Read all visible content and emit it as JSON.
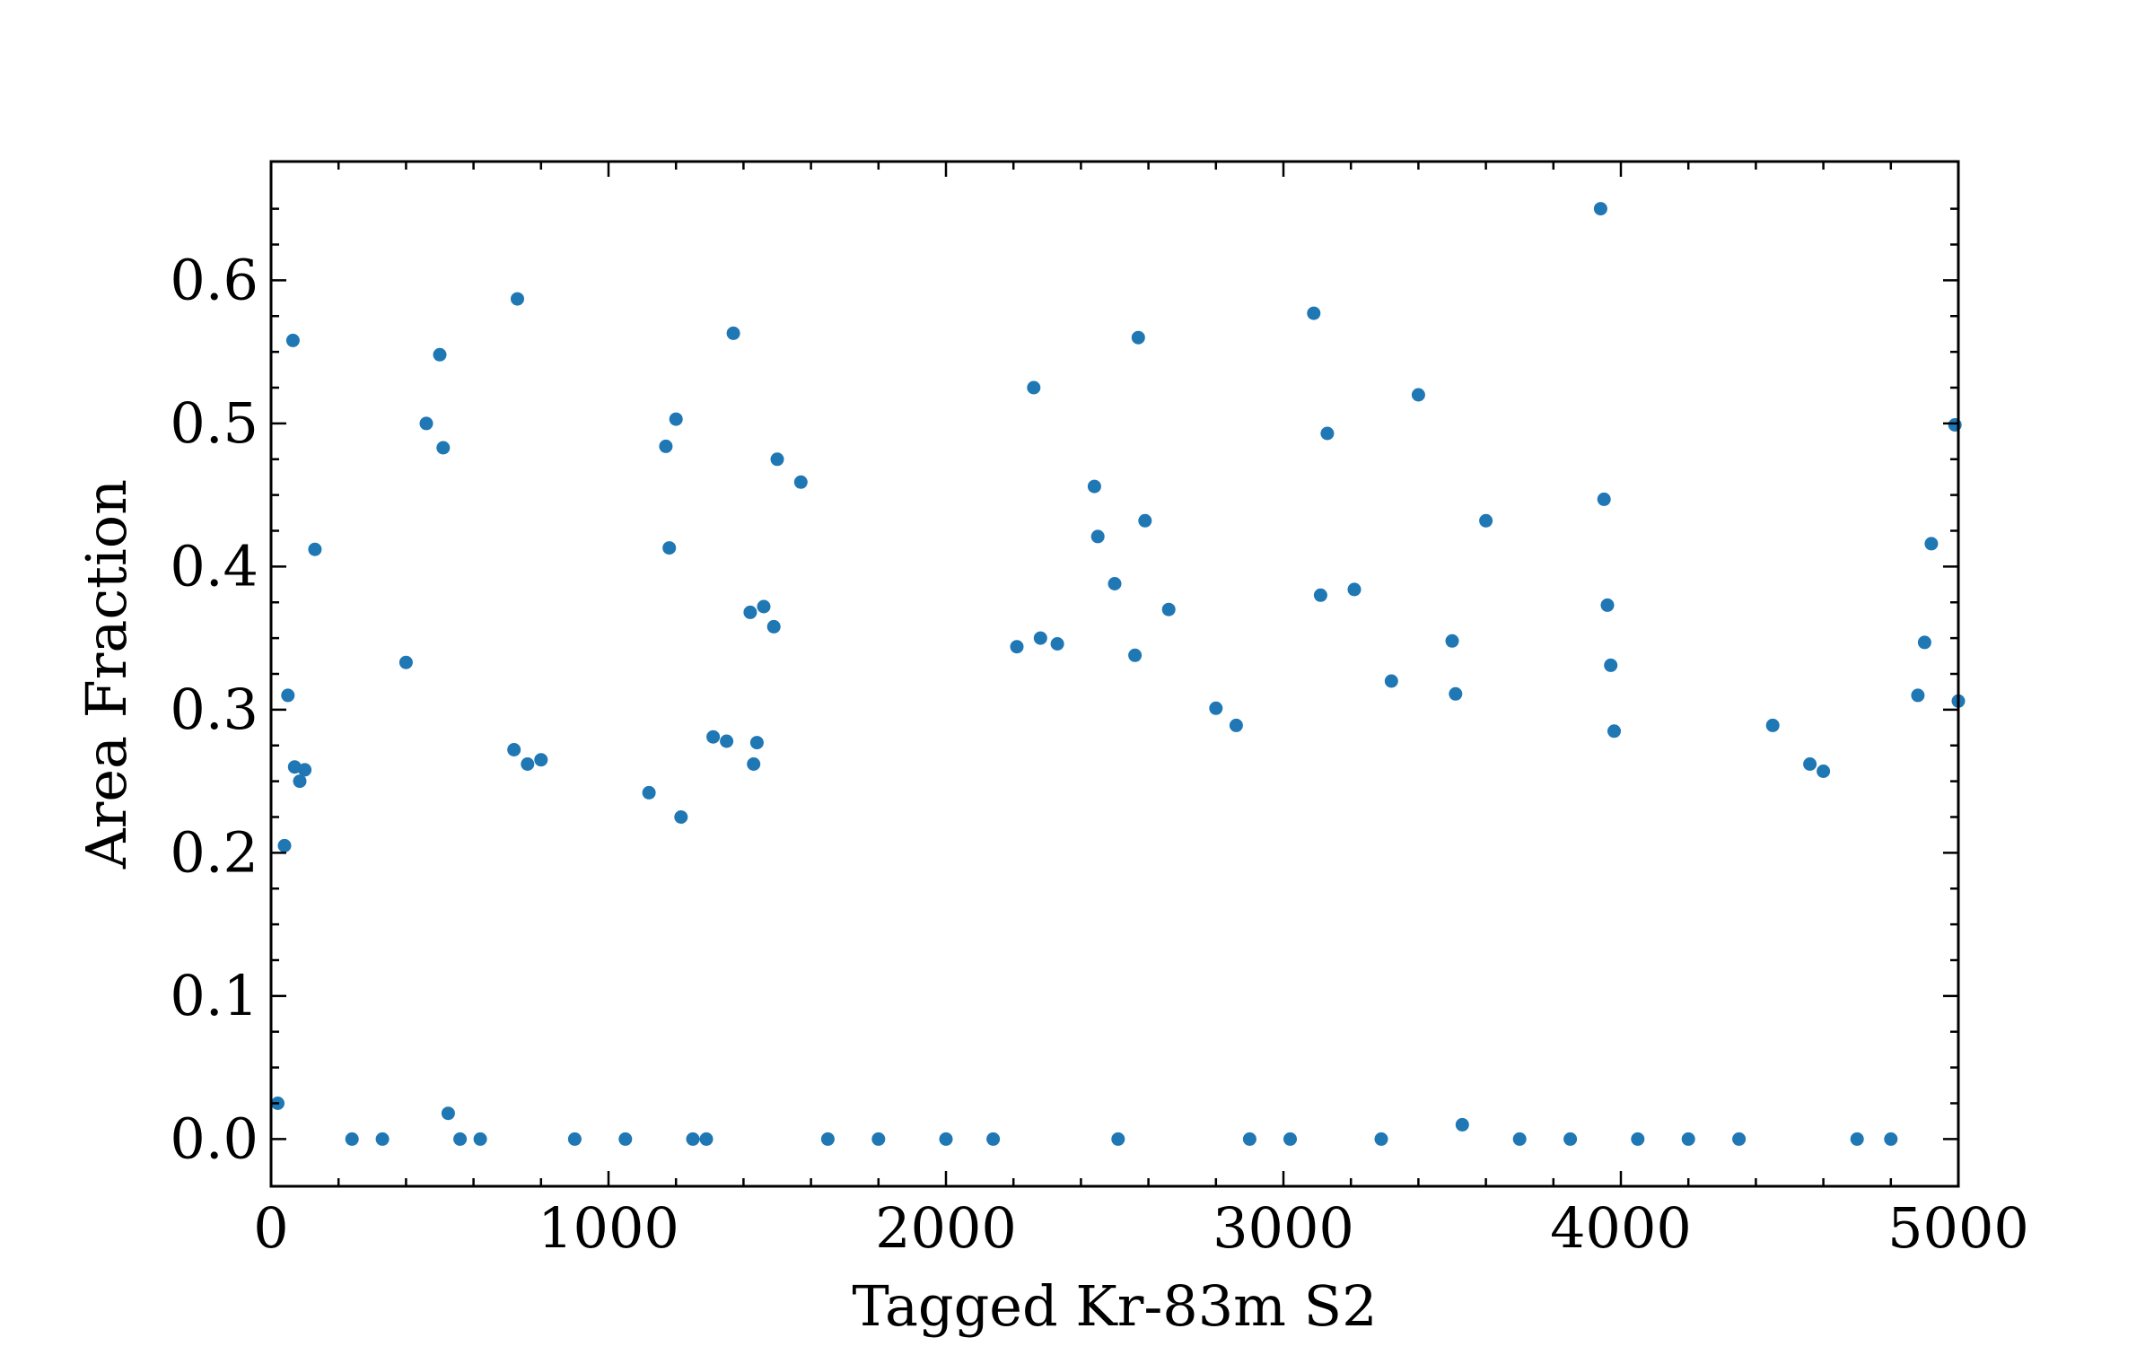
{
  "chart_data": {
    "type": "scatter",
    "title": "",
    "xlabel": "Tagged Kr-83m S2",
    "ylabel": "Area Fraction",
    "xlim": [
      0,
      5000
    ],
    "ylim": [
      -0.033,
      0.683
    ],
    "xticks": [
      0,
      1000,
      2000,
      3000,
      4000,
      5000
    ],
    "yticks": [
      0.0,
      0.1,
      0.2,
      0.3,
      0.4,
      0.5,
      0.6
    ],
    "xtick_labels": [
      "0",
      "1000",
      "2000",
      "3000",
      "4000",
      "5000"
    ],
    "ytick_labels": [
      "0.0",
      "0.1",
      "0.2",
      "0.3",
      "0.4",
      "0.5",
      "0.6"
    ],
    "grid": false,
    "legend": "none",
    "color": "#1f77b4",
    "series": [
      {
        "points": [
          [
            20,
            0.025
          ],
          [
            40,
            0.205
          ],
          [
            50,
            0.31
          ],
          [
            65,
            0.558
          ],
          [
            70,
            0.26
          ],
          [
            85,
            0.25
          ],
          [
            100,
            0.258
          ],
          [
            130,
            0.412
          ],
          [
            240,
            0.0
          ],
          [
            330,
            0.0
          ],
          [
            400,
            0.333
          ],
          [
            460,
            0.5
          ],
          [
            500,
            0.548
          ],
          [
            510,
            0.483
          ],
          [
            525,
            0.018
          ],
          [
            560,
            0.0
          ],
          [
            620,
            0.0
          ],
          [
            720,
            0.272
          ],
          [
            730,
            0.587
          ],
          [
            760,
            0.262
          ],
          [
            800,
            0.265
          ],
          [
            900,
            0.0
          ],
          [
            1050,
            0.0
          ],
          [
            1120,
            0.242
          ],
          [
            1170,
            0.484
          ],
          [
            1180,
            0.413
          ],
          [
            1200,
            0.503
          ],
          [
            1215,
            0.225
          ],
          [
            1250,
            0.0
          ],
          [
            1290,
            0.0
          ],
          [
            1310,
            0.281
          ],
          [
            1350,
            0.278
          ],
          [
            1370,
            0.563
          ],
          [
            1420,
            0.368
          ],
          [
            1430,
            0.262
          ],
          [
            1440,
            0.277
          ],
          [
            1460,
            0.372
          ],
          [
            1490,
            0.358
          ],
          [
            1500,
            0.475
          ],
          [
            1570,
            0.459
          ],
          [
            1650,
            0.0
          ],
          [
            1800,
            0.0
          ],
          [
            2000,
            0.0
          ],
          [
            2140,
            0.0
          ],
          [
            2210,
            0.344
          ],
          [
            2260,
            0.525
          ],
          [
            2280,
            0.35
          ],
          [
            2330,
            0.346
          ],
          [
            2440,
            0.456
          ],
          [
            2450,
            0.421
          ],
          [
            2500,
            0.388
          ],
          [
            2510,
            0.0
          ],
          [
            2560,
            0.338
          ],
          [
            2570,
            0.56
          ],
          [
            2590,
            0.432
          ],
          [
            2660,
            0.37
          ],
          [
            2800,
            0.301
          ],
          [
            2860,
            0.289
          ],
          [
            2900,
            0.0
          ],
          [
            3020,
            0.0
          ],
          [
            3090,
            0.577
          ],
          [
            3110,
            0.38
          ],
          [
            3130,
            0.493
          ],
          [
            3210,
            0.384
          ],
          [
            3290,
            0.0
          ],
          [
            3320,
            0.32
          ],
          [
            3400,
            0.52
          ],
          [
            3500,
            0.348
          ],
          [
            3510,
            0.311
          ],
          [
            3530,
            0.01
          ],
          [
            3600,
            0.432
          ],
          [
            3700,
            0.0
          ],
          [
            3850,
            0.0
          ],
          [
            3940,
            0.65
          ],
          [
            3950,
            0.447
          ],
          [
            3960,
            0.373
          ],
          [
            3970,
            0.331
          ],
          [
            3980,
            0.285
          ],
          [
            4050,
            0.0
          ],
          [
            4200,
            0.0
          ],
          [
            4350,
            0.0
          ],
          [
            4450,
            0.289
          ],
          [
            4560,
            0.262
          ],
          [
            4600,
            0.257
          ],
          [
            4700,
            0.0
          ],
          [
            4800,
            0.0
          ],
          [
            4880,
            0.31
          ],
          [
            4900,
            0.347
          ],
          [
            4920,
            0.416
          ],
          [
            4990,
            0.499
          ],
          [
            5000,
            0.306
          ]
        ]
      }
    ]
  }
}
